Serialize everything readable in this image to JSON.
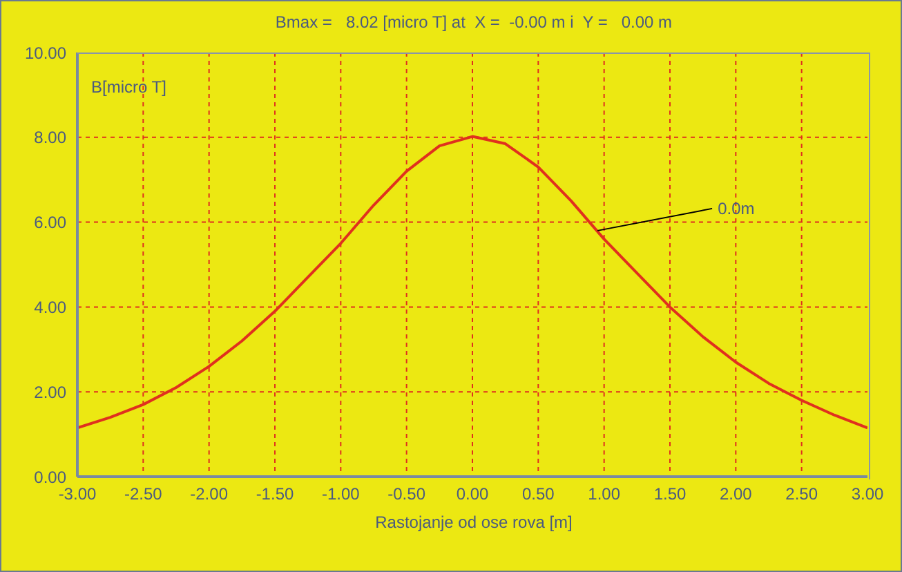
{
  "chart_data": {
    "type": "line",
    "title": "Bmax =   8.02 [micro T] at  X =  -0.00 m i  Y =   0.00 m",
    "xlabel": "Rastojanje od ose rova [m]",
    "ylabel": "B[micro T]",
    "x": [
      -3,
      -2.75,
      -2.5,
      -2.25,
      -2,
      -1.75,
      -1.5,
      -1.25,
      -1,
      -0.75,
      -0.5,
      -0.25,
      0,
      0.25,
      0.5,
      0.75,
      1,
      1.25,
      1.5,
      1.75,
      2,
      2.25,
      2.5,
      2.75,
      3
    ],
    "series": [
      {
        "color": "#e0301e",
        "values": [
          1.15,
          1.4,
          1.7,
          2.1,
          2.6,
          3.2,
          3.9,
          4.7,
          5.5,
          6.4,
          7.2,
          7.8,
          8.02,
          7.85,
          7.3,
          6.5,
          5.6,
          4.8,
          4.0,
          3.3,
          2.7,
          2.2,
          1.8,
          1.45,
          1.15
        ]
      }
    ],
    "xlim": [
      -3,
      3
    ],
    "ylim": [
      0,
      10
    ],
    "xticks": [
      {
        "value": -3,
        "label": "-3.00"
      },
      {
        "value": -2.5,
        "label": "-2.50"
      },
      {
        "value": -2,
        "label": "-2.00"
      },
      {
        "value": -1.5,
        "label": "-1.50"
      },
      {
        "value": -1,
        "label": "-1.00"
      },
      {
        "value": -0.5,
        "label": "-0.50"
      },
      {
        "value": 0,
        "label": "0.00"
      },
      {
        "value": 0.5,
        "label": "0.50"
      },
      {
        "value": 1,
        "label": "1.00"
      },
      {
        "value": 1.5,
        "label": "1.50"
      },
      {
        "value": 2,
        "label": "2.00"
      },
      {
        "value": 2.5,
        "label": "2.50"
      },
      {
        "value": 3,
        "label": "3.00"
      }
    ],
    "yticks": [
      {
        "value": 0,
        "label": "0.00"
      },
      {
        "value": 2,
        "label": "2.00"
      },
      {
        "value": 4,
        "label": "4.00"
      },
      {
        "value": 6,
        "label": "6.00"
      },
      {
        "value": 8,
        "label": "8.00"
      },
      {
        "value": 10,
        "label": "10.00"
      }
    ],
    "annotations": [
      {
        "text": "0.0m",
        "x": 0.95,
        "y": 5.8
      }
    ],
    "grid": true,
    "marker": "none",
    "line_style": "solid",
    "legend": false
  }
}
